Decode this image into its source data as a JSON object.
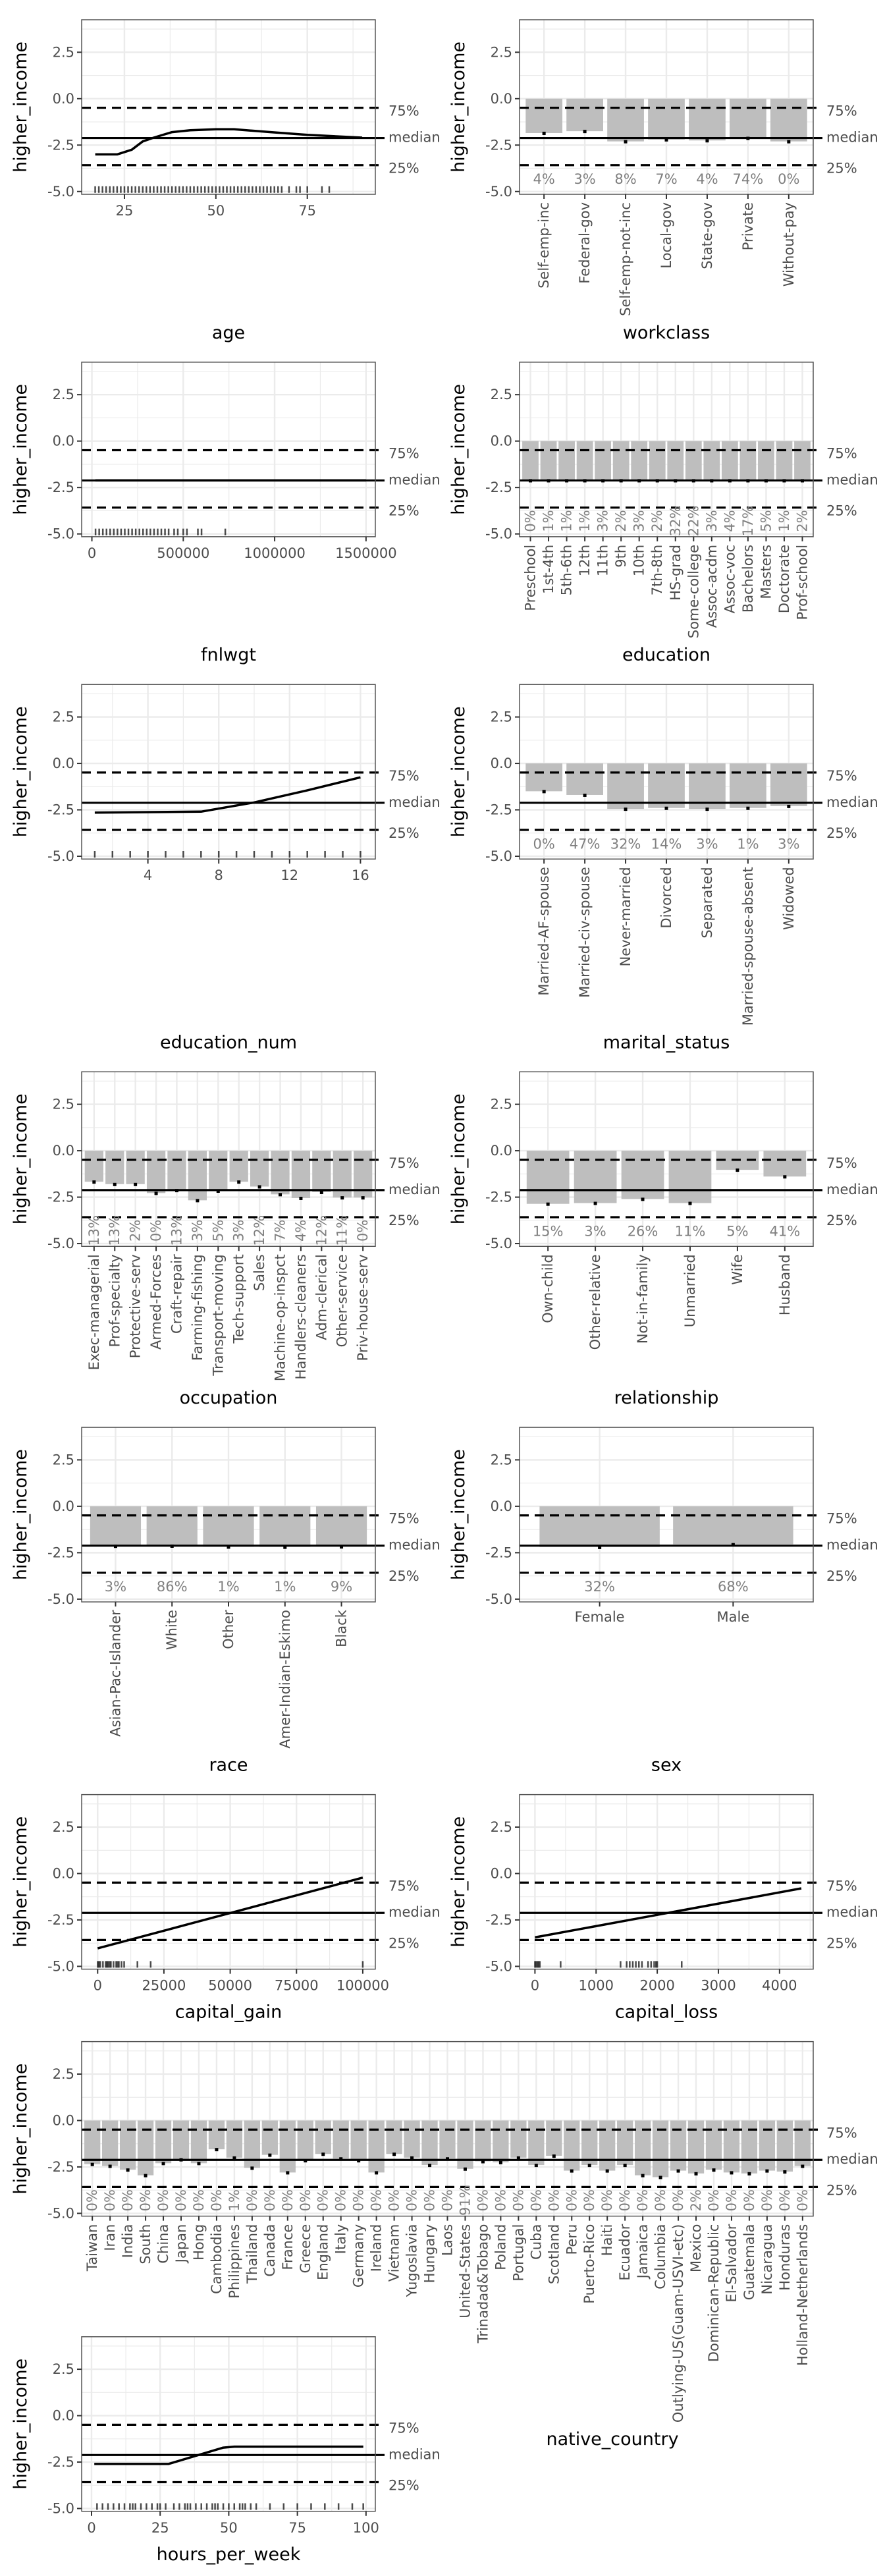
{
  "chart_data": {
    "type": "grid of partial dependence plots",
    "ylabel": "higher_income",
    "ylim": [
      -5.15,
      4.25
    ],
    "yticks": [
      "2.5",
      "0.0",
      "-2.5",
      "-5.0"
    ],
    "reference_lines": [
      {
        "label": "75%",
        "value": -0.49,
        "style": "dashed"
      },
      {
        "label": "median",
        "value": -2.12,
        "style": "solid"
      },
      {
        "label": "25%",
        "value": -3.58,
        "style": "dashed"
      }
    ],
    "grid": true,
    "colors": {
      "bar": "#bebebe",
      "line": "#000000",
      "grid": "#ebebeb",
      "pct_text": "#7f7f7f"
    },
    "panels": [
      {
        "xlabel": "age",
        "type": "line",
        "xlim": [
          13.3,
          93.6
        ],
        "xticks": [
          25,
          50,
          75
        ],
        "x": [
          17,
          23,
          27,
          30,
          33,
          38,
          43,
          50,
          55,
          65,
          75,
          90
        ],
        "y": [
          -3.0,
          -3.0,
          -2.75,
          -2.3,
          -2.1,
          -1.8,
          -1.7,
          -1.65,
          -1.65,
          -1.8,
          -1.95,
          -2.1
        ],
        "rug": [
          17,
          18,
          19,
          20,
          21,
          22,
          23,
          24,
          25,
          26,
          27,
          28,
          29,
          30,
          31,
          32,
          33,
          34,
          35,
          36,
          37,
          38,
          39,
          40,
          41,
          42,
          43,
          44,
          45,
          46,
          47,
          48,
          49,
          50,
          51,
          52,
          53,
          54,
          55,
          56,
          57,
          58,
          59,
          60,
          61,
          62,
          63,
          64,
          65,
          66,
          67,
          68,
          70,
          72,
          73,
          75,
          79,
          81
        ]
      },
      {
        "xlabel": "workclass",
        "type": "bar",
        "categories": [
          "Self-emp-inc",
          "Federal-gov",
          "Self-emp-not-inc",
          "Local-gov",
          "State-gov",
          "Private",
          "Without-pay"
        ],
        "values": [
          -1.85,
          -1.75,
          -2.3,
          -2.2,
          -2.25,
          -2.12,
          -2.3
        ],
        "percents": [
          "4%",
          "3%",
          "8%",
          "7%",
          "4%",
          "74%",
          "0%"
        ]
      },
      {
        "xlabel": "fnlwgt",
        "type": "line",
        "xlim": [
          -56000,
          1551000
        ],
        "xticks": [
          0,
          500000,
          1000000,
          1500000
        ],
        "x": [
          19000,
          1500000
        ],
        "y": [
          -2.12,
          -2.12
        ],
        "rug": [
          20000,
          40000,
          60000,
          80000,
          100000,
          120000,
          140000,
          160000,
          180000,
          200000,
          220000,
          240000,
          260000,
          280000,
          300000,
          320000,
          340000,
          360000,
          380000,
          400000,
          420000,
          450000,
          470000,
          500000,
          520000,
          580000,
          600000,
          730000
        ]
      },
      {
        "xlabel": "education",
        "type": "bar",
        "categories": [
          "Preschool",
          "1st-4th",
          "5th-6th",
          "12th",
          "11th",
          "9th",
          "10th",
          "7th-8th",
          "HS-grad",
          "Some-college",
          "Assoc-acdm",
          "Assoc-voc",
          "Bachelors",
          "Masters",
          "Doctorate",
          "Prof-school"
        ],
        "values": [
          -2.12,
          -2.12,
          -2.12,
          -2.12,
          -2.12,
          -2.12,
          -2.12,
          -2.12,
          -2.12,
          -2.12,
          -2.12,
          -2.12,
          -2.12,
          -2.12,
          -2.12,
          -2.12
        ],
        "percents": [
          "0%",
          "1%",
          "1%",
          "1%",
          "3%",
          "2%",
          "3%",
          "2%",
          "32%",
          "22%",
          "3%",
          "4%",
          "17%",
          "5%",
          "1%",
          "2%"
        ]
      },
      {
        "xlabel": "education_num",
        "type": "line",
        "xlim": [
          0.26,
          16.84
        ],
        "xticks": [
          4,
          8,
          12,
          16
        ],
        "x": [
          1,
          7,
          10,
          13,
          16
        ],
        "y": [
          -2.65,
          -2.6,
          -2.1,
          -1.45,
          -0.75
        ],
        "rug": [
          1,
          2,
          3,
          4,
          5,
          6,
          7,
          8,
          9,
          10,
          11,
          12,
          13,
          14,
          15,
          16
        ]
      },
      {
        "xlabel": "marital_status",
        "type": "bar",
        "categories": [
          "Married-AF-spouse",
          "Married-civ-spouse",
          "Never-married",
          "Divorced",
          "Separated",
          "Married-spouse-absent",
          "Widowed"
        ],
        "values": [
          -1.5,
          -1.7,
          -2.45,
          -2.4,
          -2.45,
          -2.4,
          -2.3
        ],
        "percents": [
          "0%",
          "47%",
          "32%",
          "14%",
          "3%",
          "1%",
          "3%"
        ]
      },
      {
        "xlabel": "occupation",
        "type": "bar",
        "categories": [
          "Exec-managerial",
          "Prof-specialty",
          "Protective-serv",
          "Armed-Forces",
          "Craft-repair",
          "Farming-fishing",
          "Transport-moving",
          "Tech-support",
          "Sales",
          "Machine-op-inspct",
          "Handlers-cleaners",
          "Adm-clerical",
          "Other-service",
          "Priv-house-serv"
        ],
        "values": [
          -1.67,
          -1.8,
          -1.8,
          -2.28,
          -2.13,
          -2.67,
          -2.16,
          -1.67,
          -1.93,
          -2.35,
          -2.55,
          -2.23,
          -2.52,
          -2.52
        ],
        "percents": [
          "13%",
          "13%",
          "2%",
          "0%",
          "13%",
          "3%",
          "5%",
          "3%",
          "12%",
          "7%",
          "4%",
          "12%",
          "11%",
          "0%"
        ]
      },
      {
        "xlabel": "relationship",
        "type": "bar",
        "categories": [
          "Own-child",
          "Other-relative",
          "Not-in-family",
          "Unmarried",
          "Wife",
          "Husband"
        ],
        "values": [
          -2.86,
          -2.82,
          -2.6,
          -2.82,
          -1.03,
          -1.39
        ],
        "percents": [
          "15%",
          "3%",
          "26%",
          "11%",
          "5%",
          "41%"
        ]
      },
      {
        "xlabel": "race",
        "type": "bar",
        "categories": [
          "Asian-Pac-Islander",
          "White",
          "Other",
          "Amer-Indian-Eskimo",
          "Black"
        ],
        "values": [
          -2.14,
          -2.13,
          -2.18,
          -2.19,
          -2.17
        ],
        "percents": [
          "3%",
          "86%",
          "1%",
          "1%",
          "9%"
        ]
      },
      {
        "xlabel": "sex",
        "type": "bar",
        "horizontal_labels": true,
        "categories": [
          "Female",
          "Male"
        ],
        "values": [
          -2.2,
          -2.05
        ],
        "percents": [
          "32%",
          "68%"
        ]
      },
      {
        "xlabel": "capital_gain",
        "type": "line",
        "xlim": [
          -6030,
          104740
        ],
        "xticks": [
          0,
          25000,
          50000,
          75000,
          100000
        ],
        "x": [
          0,
          100000
        ],
        "y": [
          -4.03,
          -0.22
        ],
        "rug": [
          0,
          500,
          1000,
          2000,
          3000,
          3500,
          4000,
          4500,
          5000,
          6000,
          7000,
          7500,
          8000,
          9000,
          10000,
          15000,
          20000,
          99999
        ]
      },
      {
        "xlabel": "capital_loss",
        "type": "line",
        "xlim": [
          -252,
          4551
        ],
        "xticks": [
          0,
          1000,
          2000,
          3000,
          4000
        ],
        "x": [
          0,
          4356
        ],
        "y": [
          -3.44,
          -0.8
        ],
        "rug": [
          0,
          20,
          40,
          60,
          80,
          420,
          1400,
          1500,
          1550,
          1600,
          1650,
          1700,
          1750,
          1850,
          1900,
          1950,
          1980,
          2000,
          2400
        ]
      },
      {
        "xlabel": "hours_per_week",
        "type": "line",
        "xlim": [
          -3.6,
          103.4
        ],
        "xticks": [
          0,
          25,
          50,
          75,
          100
        ],
        "x": [
          1,
          28,
          48,
          52,
          99
        ],
        "y": [
          -2.6,
          -2.6,
          -1.72,
          -1.67,
          -1.67
        ],
        "rug": [
          2,
          4,
          6,
          8,
          10,
          12,
          14,
          15,
          16,
          18,
          20,
          22,
          24,
          25,
          27,
          30,
          32,
          34,
          35,
          36,
          38,
          40,
          42,
          44,
          45,
          46,
          48,
          50,
          52,
          54,
          55,
          56,
          58,
          60,
          65,
          70,
          75,
          80,
          85,
          90,
          95,
          99
        ]
      },
      {
        "xlabel": "native_country",
        "type": "bar",
        "categories": [
          "Taiwan",
          "Iran",
          "India",
          "South",
          "China",
          "Japan",
          "Hong",
          "Cambodia",
          "Philippines",
          "Thailand",
          "Canada",
          "France",
          "Greece",
          "England",
          "Italy",
          "Germany",
          "Ireland",
          "Vietnam",
          "Yugoslavia",
          "Hungary",
          "Laos",
          "United-States",
          "Trinadad&Tobago",
          "Poland",
          "Portugal",
          "Cuba",
          "Scotland",
          "Peru",
          "Puerto-Rico",
          "Haiti",
          "Ecuador",
          "Jamaica",
          "Columbia",
          "Outlying-US(Guam-USVI-etc)",
          "Mexico",
          "Dominican-Republic",
          "El-Salvador",
          "Guatemala",
          "Nicaragua",
          "Honduras",
          "Holland-Netherlands"
        ],
        "values": [
          -2.35,
          -2.45,
          -2.65,
          -2.95,
          -2.3,
          -2.1,
          -2.3,
          -1.55,
          -2.0,
          -2.55,
          -1.85,
          -2.8,
          -2.15,
          -1.8,
          -2.05,
          -2.15,
          -2.8,
          -1.8,
          -2.0,
          -2.4,
          -2.05,
          -2.6,
          -2.2,
          -2.25,
          -2.0,
          -2.4,
          -1.9,
          -2.7,
          -2.4,
          -2.7,
          -2.4,
          -2.95,
          -3.05,
          -2.7,
          -2.85,
          -2.65,
          -2.8,
          -2.85,
          -2.7,
          -2.75,
          -2.45
        ],
        "percents": [
          "0%",
          "0%",
          "0%",
          "0%",
          "0%",
          "0%",
          "0%",
          "0%",
          "1%",
          "0%",
          "0%",
          "0%",
          "0%",
          "0%",
          "0%",
          "0%",
          "0%",
          "0%",
          "0%",
          "0%",
          "0%",
          "91%",
          "0%",
          "0%",
          "0%",
          "0%",
          "0%",
          "0%",
          "0%",
          "0%",
          "0%",
          "0%",
          "0%",
          "0%",
          "2%",
          "0%",
          "0%",
          "0%",
          "0%",
          "0%",
          "0%"
        ]
      }
    ]
  }
}
